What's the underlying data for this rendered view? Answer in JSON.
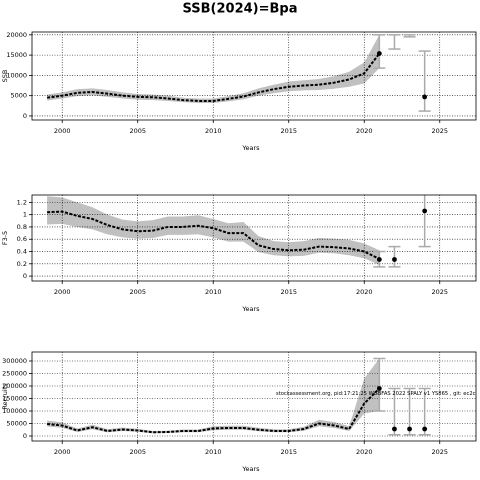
{
  "title": "SSB(2024)=Bpa",
  "chart_data": [
    {
      "type": "line",
      "ylabel": "SSB",
      "xlabel": "Years",
      "x": [
        1999,
        2000,
        2001,
        2002,
        2003,
        2004,
        2005,
        2006,
        2007,
        2008,
        2009,
        2010,
        2011,
        2012,
        2013,
        2014,
        2015,
        2016,
        2017,
        2018,
        2019,
        2020,
        2021
      ],
      "values": [
        4500,
        5000,
        5700,
        5900,
        5500,
        5000,
        4700,
        4600,
        4300,
        3900,
        3700,
        3700,
        4200,
        4800,
        5800,
        6600,
        7200,
        7500,
        7700,
        8200,
        9000,
        10500,
        15400
      ],
      "lower": [
        3800,
        4300,
        4900,
        5100,
        4700,
        4300,
        4000,
        3900,
        3700,
        3400,
        3200,
        3200,
        3600,
        4100,
        5000,
        5600,
        6100,
        6300,
        6400,
        6700,
        7200,
        8000,
        11800
      ],
      "upper": [
        5300,
        5800,
        6600,
        6800,
        6400,
        5800,
        5400,
        5300,
        5000,
        4500,
        4300,
        4300,
        4900,
        5600,
        6800,
        7700,
        8500,
        8800,
        9100,
        9800,
        10900,
        13200,
        20000
      ],
      "points": {
        "x": [
          2021,
          2022,
          2023,
          2024
        ],
        "values": [
          15400,
          null,
          null,
          4700
        ],
        "low": [
          11800,
          16500,
          19500,
          1200
        ],
        "high": [
          20000,
          20000,
          20000,
          16000
        ]
      },
      "color": "#000000",
      "band_color": "#c0c0c0",
      "errorbar_color": "#aaaaaa",
      "xlim": [
        1998,
        2027.4
      ],
      "xticks": [
        2000,
        2005,
        2010,
        2015,
        2020,
        2025
      ],
      "ylim": [
        -1000,
        20700
      ],
      "yticks": [
        0,
        5000,
        10000,
        15000,
        20000
      ],
      "grid": true
    },
    {
      "type": "line",
      "ylabel": "F3-5",
      "xlabel": "Years",
      "x": [
        1999,
        2000,
        2001,
        2002,
        2003,
        2004,
        2005,
        2006,
        2007,
        2008,
        2009,
        2010,
        2011,
        2012,
        2013,
        2014,
        2015,
        2016,
        2017,
        2018,
        2019,
        2020,
        2021
      ],
      "values": [
        1.04,
        1.05,
        0.98,
        0.93,
        0.83,
        0.76,
        0.73,
        0.74,
        0.8,
        0.8,
        0.82,
        0.78,
        0.7,
        0.7,
        0.5,
        0.44,
        0.42,
        0.43,
        0.48,
        0.47,
        0.45,
        0.4,
        0.28
      ],
      "lower": [
        0.84,
        0.85,
        0.8,
        0.76,
        0.68,
        0.63,
        0.61,
        0.62,
        0.67,
        0.67,
        0.68,
        0.63,
        0.56,
        0.56,
        0.39,
        0.34,
        0.32,
        0.33,
        0.38,
        0.37,
        0.34,
        0.29,
        0.18
      ],
      "upper": [
        1.3,
        1.28,
        1.2,
        1.12,
        1.0,
        0.92,
        0.89,
        0.91,
        0.97,
        0.97,
        0.99,
        0.93,
        0.86,
        0.88,
        0.65,
        0.57,
        0.55,
        0.57,
        0.62,
        0.61,
        0.59,
        0.53,
        0.42
      ],
      "points": {
        "x": [
          2021,
          2022,
          2024
        ],
        "values": [
          0.27,
          0.27,
          1.06
        ],
        "low": [
          0.15,
          0.15,
          0.48
        ],
        "high": [
          0.4,
          0.48,
          1.4
        ]
      },
      "color": "#000000",
      "band_color": "#c0c0c0",
      "errorbar_color": "#aaaaaa",
      "xlim": [
        1998,
        2027.4
      ],
      "xticks": [
        2000,
        2005,
        2010,
        2015,
        2020,
        2025
      ],
      "ylim": [
        -0.08,
        1.32
      ],
      "yticks": [
        0.0,
        0.2,
        0.4,
        0.6,
        0.8,
        1.0,
        1.2
      ],
      "grid": true
    },
    {
      "type": "line",
      "ylabel": "Recruits",
      "xlabel": "Years",
      "annotation": "stockassessment.org, pid:17:21:25 WGBFAS 2022 SPALY v1 YS865 , git: ec2c",
      "x": [
        1999,
        2000,
        2001,
        2002,
        2003,
        2004,
        2005,
        2006,
        2007,
        2008,
        2009,
        2010,
        2011,
        2012,
        2013,
        2014,
        2015,
        2016,
        2017,
        2018,
        2019,
        2020,
        2021
      ],
      "values": [
        48000,
        42000,
        22000,
        35000,
        20000,
        26000,
        22000,
        15000,
        16000,
        20000,
        20000,
        30000,
        32000,
        32000,
        25000,
        20000,
        20000,
        28000,
        50000,
        42000,
        28000,
        130000,
        190000
      ],
      "lower": [
        38000,
        33000,
        16000,
        27000,
        15000,
        20000,
        17000,
        11000,
        12000,
        15000,
        15000,
        23000,
        25000,
        25000,
        19000,
        15000,
        15000,
        21000,
        39000,
        32000,
        20000,
        90000,
        100000
      ],
      "upper": [
        62000,
        54000,
        30000,
        45000,
        27000,
        34000,
        29000,
        20000,
        21000,
        26000,
        26000,
        39000,
        41000,
        41000,
        33000,
        27000,
        27000,
        37000,
        65000,
        56000,
        39000,
        230000,
        310000
      ],
      "points": {
        "x": [
          2021,
          2022,
          2023,
          2024
        ],
        "values": [
          190000,
          28000,
          28000,
          28000
        ],
        "low": [
          100000,
          5000,
          5000,
          5000
        ],
        "high": [
          310000,
          190000,
          190000,
          190000
        ]
      },
      "color": "#000000",
      "band_color": "#c0c0c0",
      "errorbar_color": "#aaaaaa",
      "xlim": [
        1998,
        2027.4
      ],
      "xticks": [
        2000,
        2005,
        2010,
        2015,
        2020,
        2025
      ],
      "ylim": [
        -20000,
        336000
      ],
      "yticks": [
        0,
        50000,
        100000,
        150000,
        200000,
        250000,
        300000
      ],
      "grid": true
    }
  ]
}
